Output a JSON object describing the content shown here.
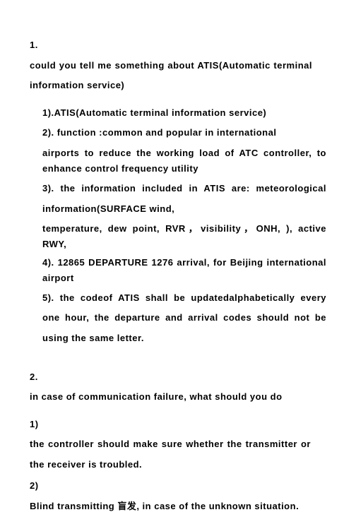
{
  "q1": {
    "num": "1.",
    "title": "could you tell me something about ATIS(Automatic terminal information service)",
    "p1": "1).ATIS(Automatic terminal information service)",
    "p2": "2). function :common and popular in international",
    "p2b": "airports to reduce the working load of ATC controller, to enhance control frequency utility",
    "p3": "3). the information included in ATIS are: meteorological information(SURFACE wind,",
    "p3b": "temperature, dew point, RVR，visibility，ONH, ), active RWY,",
    "p4": "4). 12865 DEPARTURE 1276 arrival, for Beijing international airport",
    "p5": "5). the codeof ATIS shall be updatedalphabetically every one hour, the departure and arrival codes should not be using the same letter."
  },
  "q2": {
    "num": "2.",
    "title": "in case of communication failure, what should you do",
    "s1num": "1)",
    "s1": "the controller should make sure whether the transmitter or the receiver is troubled.",
    "s2num": "2)",
    "s2": "Blind transmitting 盲发, in case of the unknown situation."
  }
}
